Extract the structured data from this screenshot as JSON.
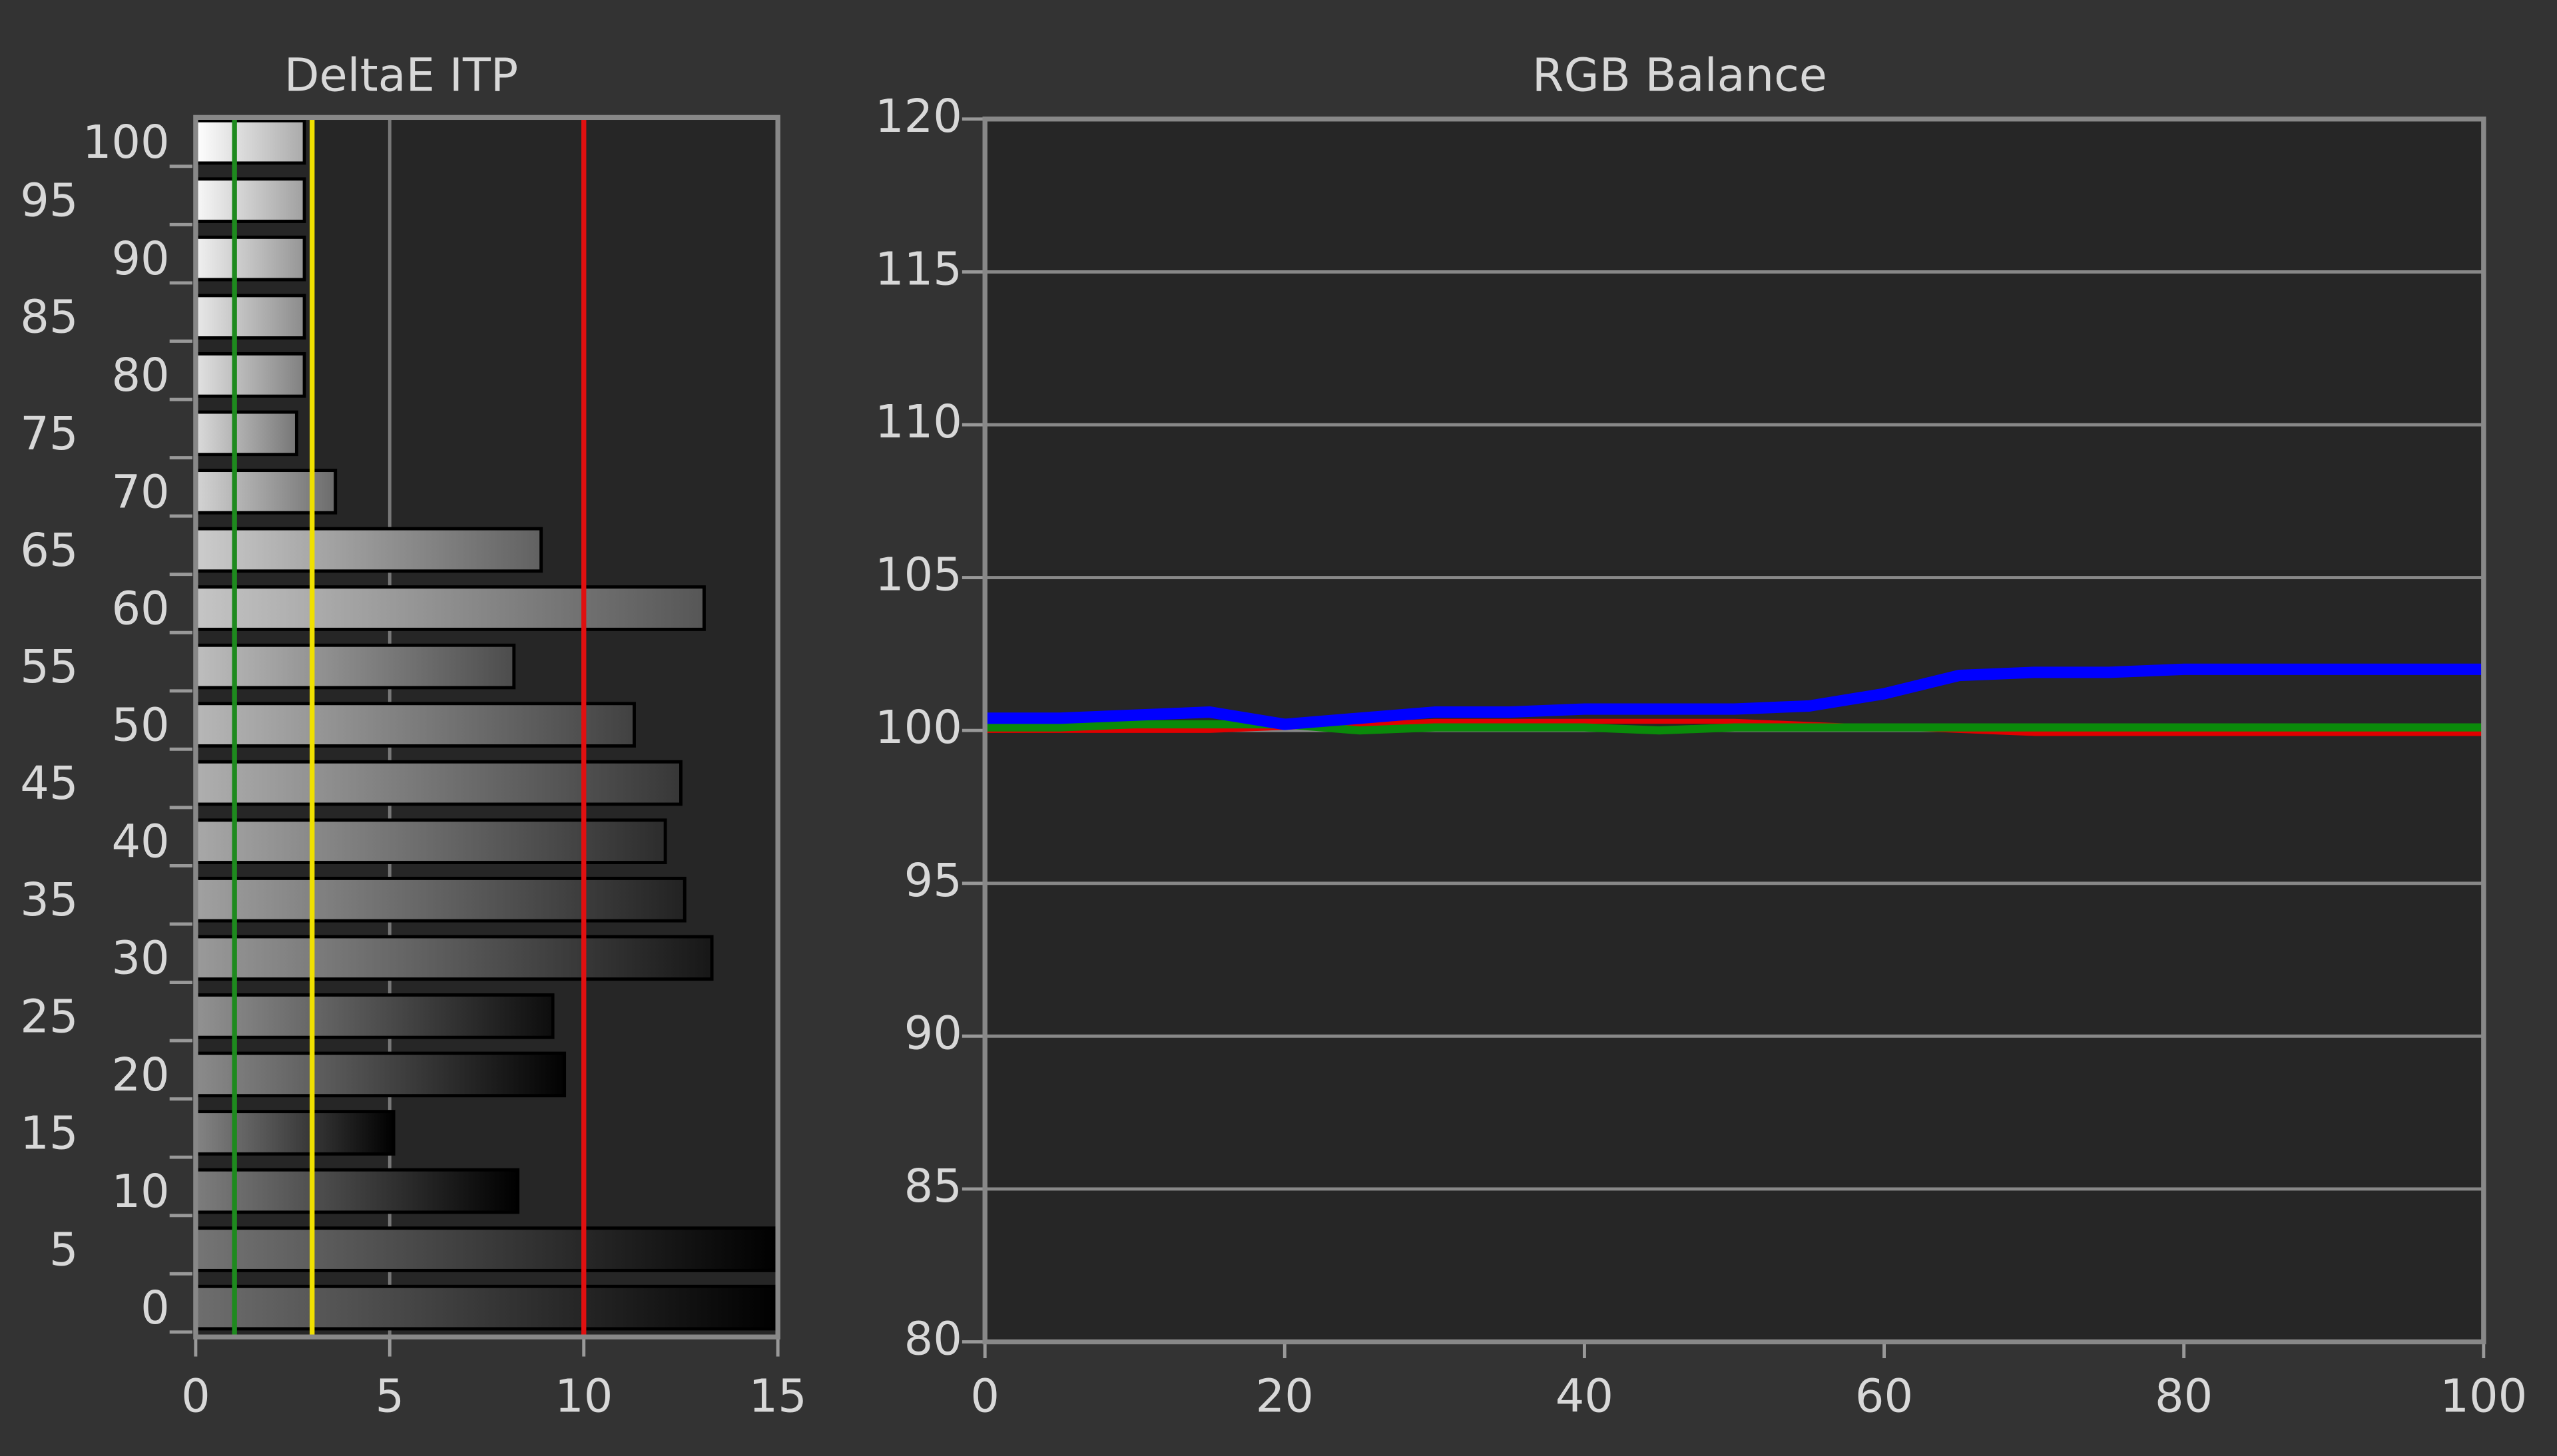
{
  "chart_data": [
    {
      "type": "hbar",
      "title": "DeltaE ITP",
      "categories": [
        0,
        5,
        10,
        15,
        20,
        25,
        30,
        35,
        40,
        45,
        50,
        55,
        60,
        65,
        70,
        75,
        80,
        85,
        90,
        95,
        100
      ],
      "values": [
        15,
        15,
        8.3,
        5.1,
        9.5,
        9.2,
        13.3,
        12.6,
        12.1,
        12.5,
        11.3,
        8.2,
        13.1,
        8.9,
        3.6,
        2.6,
        2.8,
        2.8,
        2.8,
        2.8,
        2.8
      ],
      "xlim": [
        0,
        15
      ],
      "xticks": [
        0,
        5,
        10,
        15
      ],
      "grid": true,
      "reference_lines": [
        {
          "value": 1,
          "color": "#1e8a1e"
        },
        {
          "value": 3,
          "color": "#f0e000"
        },
        {
          "value": 10,
          "color": "#e01010"
        }
      ]
    },
    {
      "type": "line",
      "title": "RGB Balance",
      "x": [
        0,
        5,
        10,
        15,
        20,
        25,
        30,
        35,
        40,
        45,
        50,
        55,
        60,
        65,
        70,
        75,
        80,
        85,
        90,
        95,
        100
      ],
      "series": [
        {
          "color": "#e00000",
          "values": [
            100.0,
            100.0,
            100.0,
            100.0,
            100.1,
            100.2,
            100.3,
            100.3,
            100.3,
            100.3,
            100.3,
            100.2,
            100.1,
            100.0,
            99.9,
            99.9,
            99.9,
            99.9,
            99.9,
            99.9,
            99.9
          ]
        },
        {
          "color": "#0a8a0a",
          "values": [
            100.1,
            100.1,
            100.2,
            100.2,
            100.2,
            100.0,
            100.1,
            100.1,
            100.1,
            100.0,
            100.1,
            100.1,
            100.1,
            100.1,
            100.1,
            100.1,
            100.1,
            100.1,
            100.1,
            100.1,
            100.1
          ]
        },
        {
          "color": "#0000ff",
          "values": [
            100.4,
            100.4,
            100.5,
            100.6,
            100.2,
            100.4,
            100.6,
            100.6,
            100.7,
            100.7,
            100.7,
            100.8,
            101.2,
            101.8,
            101.9,
            101.9,
            102.0,
            102.0,
            102.0,
            102.0,
            102.0
          ]
        }
      ],
      "xlim": [
        0,
        100
      ],
      "xticks": [
        0,
        20,
        40,
        60,
        80,
        100
      ],
      "ylim": [
        80,
        120
      ],
      "yticks": [
        80,
        85,
        90,
        95,
        100,
        105,
        110,
        115,
        120
      ],
      "grid": true
    }
  ]
}
